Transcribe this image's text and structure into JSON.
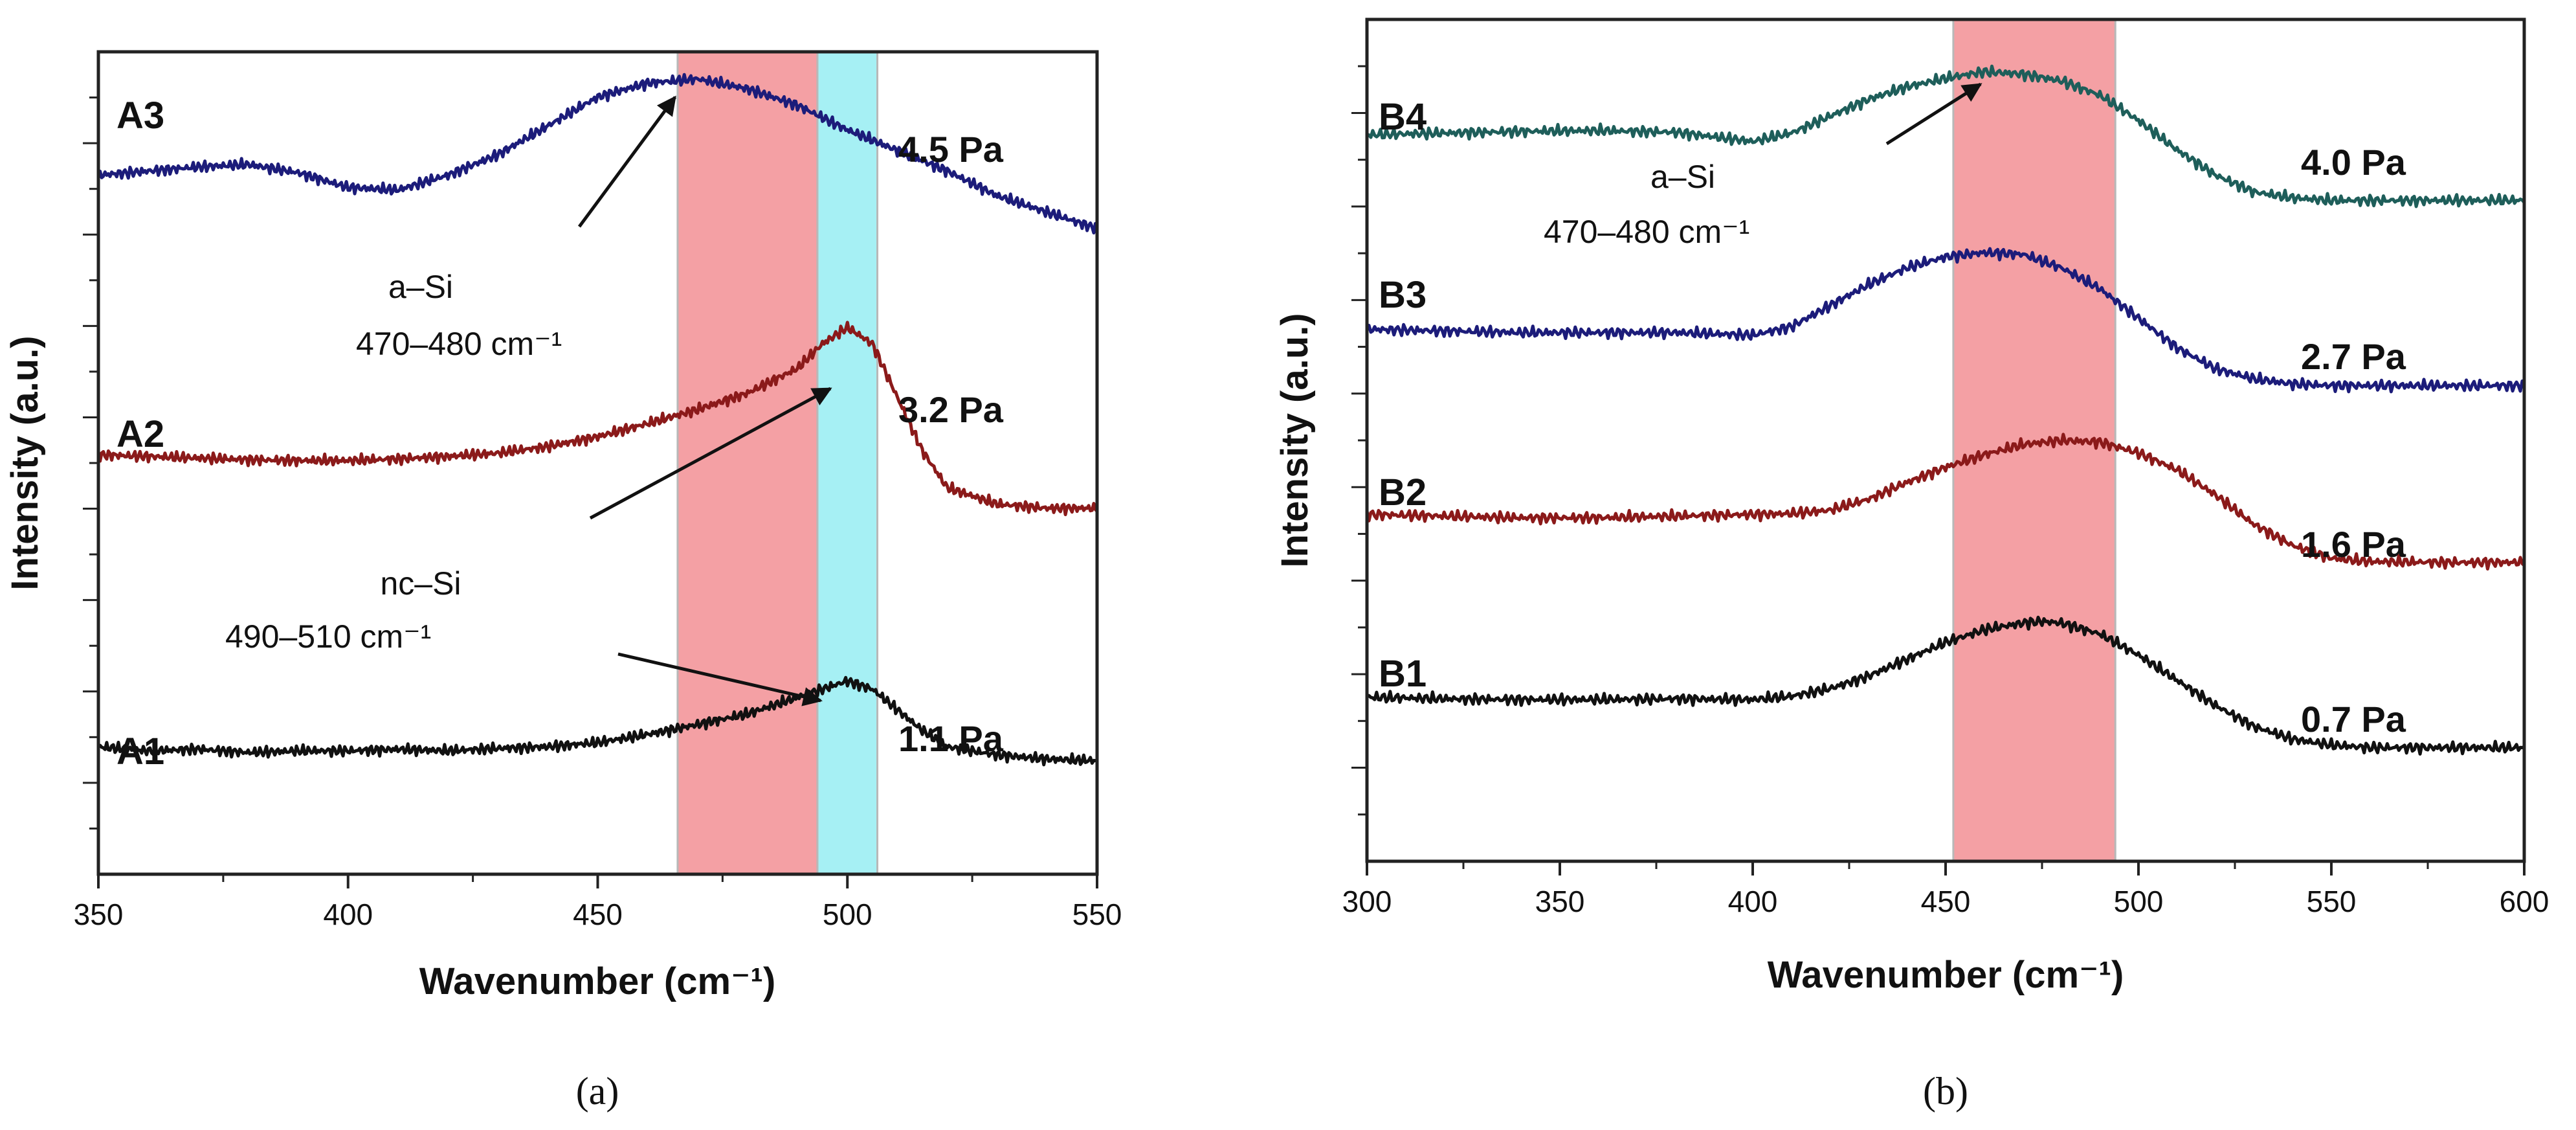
{
  "chart_data": [
    {
      "id": "a",
      "type": "line",
      "caption": "(a)",
      "xlabel": "Wavenumber (cm⁻¹)",
      "ylabel": "Intensity (a.u.)",
      "xlim": [
        350,
        550
      ],
      "ylim": [
        0,
        100
      ],
      "xticks": [
        350,
        400,
        450,
        500,
        550
      ],
      "bands": [
        {
          "name": "a-Si band",
          "x": [
            466,
            494
          ],
          "color": "#f4a0a4"
        },
        {
          "name": "nc-Si band",
          "x": [
            494,
            506
          ],
          "color": "#a6f0f4"
        }
      ],
      "series": [
        {
          "name": "A1",
          "pressure": "1.1 Pa",
          "color": "#111111",
          "x": [
            350,
            360,
            370,
            380,
            390,
            400,
            410,
            420,
            430,
            440,
            450,
            460,
            470,
            480,
            490,
            495,
            500,
            505,
            510,
            515,
            520,
            530,
            540,
            550
          ],
          "y": [
            15.5,
            15,
            15.2,
            14.8,
            15,
            15,
            15.2,
            15,
            15.3,
            15.5,
            16,
            17,
            18.2,
            19.5,
            21.5,
            22.5,
            23.5,
            22.5,
            20,
            17.5,
            15.5,
            14.5,
            14,
            13.8
          ]
        },
        {
          "name": "A2",
          "pressure": "3.2 Pa",
          "color": "#8b1a1a",
          "x": [
            350,
            360,
            370,
            380,
            390,
            400,
            410,
            420,
            430,
            440,
            450,
            460,
            470,
            480,
            490,
            495,
            500,
            505,
            510,
            515,
            520,
            530,
            540,
            550
          ],
          "y": [
            51,
            50.8,
            50.6,
            50.4,
            50.3,
            50.3,
            50.5,
            50.8,
            51.2,
            52,
            53.2,
            54.8,
            56.5,
            58.5,
            61.5,
            64.5,
            66.5,
            64.5,
            58,
            51.5,
            47,
            45,
            44.5,
            44.5
          ]
        },
        {
          "name": "A3",
          "pressure": "4.5 Pa",
          "color": "#1c1c7a",
          "x": [
            350,
            360,
            370,
            380,
            390,
            400,
            410,
            420,
            430,
            440,
            450,
            460,
            470,
            480,
            490,
            500,
            510,
            520,
            530,
            540,
            550
          ],
          "y": [
            85,
            85.5,
            86,
            86.3,
            85.3,
            83.5,
            83.2,
            85,
            87.5,
            91,
            94.5,
            96.2,
            96.7,
            95.5,
            93.5,
            90.5,
            88,
            85.5,
            82.5,
            80.5,
            78.5
          ]
        }
      ],
      "labels": {
        "samples": [
          "A1",
          "A2",
          "A3"
        ],
        "pressures": [
          "1.1 Pa",
          "3.2 Pa",
          "4.5 Pa"
        ]
      },
      "annotations": [
        {
          "lines": [
            "a–Si",
            "470–480 cm⁻¹"
          ]
        },
        {
          "lines": [
            "nc–Si",
            "490–510 cm⁻¹"
          ]
        }
      ]
    },
    {
      "id": "b",
      "type": "line",
      "caption": "(b)",
      "xlabel": "Wavenumber (cm⁻¹)",
      "ylabel": "Intensity (a.u.)",
      "xlim": [
        300,
        600
      ],
      "ylim": [
        0,
        100
      ],
      "xticks": [
        300,
        350,
        400,
        450,
        500,
        550,
        600
      ],
      "bands": [
        {
          "name": "a-Si band",
          "x": [
            452,
            494
          ],
          "color": "#f4a0a4"
        }
      ],
      "series": [
        {
          "name": "B1",
          "pressure": "0.7 Pa",
          "color": "#111111",
          "x": [
            300,
            320,
            340,
            360,
            380,
            400,
            410,
            420,
            430,
            440,
            450,
            460,
            470,
            475,
            480,
            490,
            500,
            510,
            520,
            530,
            540,
            550,
            560,
            580,
            600
          ],
          "y": [
            19.5,
            19.3,
            19.2,
            19.2,
            19.3,
            19.2,
            19.6,
            20.5,
            22,
            24,
            26,
            27.5,
            28.3,
            28.5,
            28.3,
            27,
            24.5,
            21.5,
            18.5,
            16,
            14.5,
            13.8,
            13.5,
            13.5,
            13.5
          ]
        },
        {
          "name": "B2",
          "pressure": "1.6 Pa",
          "color": "#8b1a1a",
          "x": [
            300,
            320,
            340,
            360,
            380,
            400,
            410,
            420,
            430,
            440,
            450,
            460,
            470,
            480,
            490,
            500,
            510,
            520,
            530,
            540,
            550,
            560,
            580,
            600
          ],
          "y": [
            41.2,
            41,
            40.8,
            40.8,
            41,
            41.2,
            41.3,
            41.7,
            43,
            45,
            46.8,
            48.3,
            49.5,
            50,
            49.8,
            48.5,
            46.5,
            43.5,
            40,
            37.5,
            36,
            35.6,
            35.5,
            35.5
          ]
        },
        {
          "name": "B3",
          "pressure": "2.7 Pa",
          "color": "#1c1c7a",
          "x": [
            300,
            320,
            340,
            360,
            380,
            400,
            410,
            420,
            430,
            440,
            450,
            460,
            470,
            480,
            490,
            500,
            510,
            520,
            530,
            540,
            550,
            560,
            580,
            600
          ],
          "y": [
            63.2,
            63,
            62.8,
            62.8,
            62.8,
            62.5,
            63.5,
            66,
            68.5,
            70.5,
            71.8,
            72.3,
            72.1,
            70.5,
            68,
            64.5,
            61,
            58.5,
            57.3,
            56.7,
            56.5,
            56.5,
            56.5,
            56.5
          ]
        },
        {
          "name": "B4",
          "pressure": "4.0 Pa",
          "color": "#1e5e5a",
          "x": [
            300,
            320,
            340,
            360,
            380,
            400,
            410,
            420,
            430,
            440,
            450,
            460,
            470,
            480,
            490,
            500,
            510,
            520,
            530,
            540,
            550,
            560,
            580,
            600
          ],
          "y": [
            86.3,
            86.5,
            86.7,
            86.8,
            86.6,
            85.5,
            86.5,
            88.5,
            90.5,
            92,
            93,
            93.8,
            93.5,
            92.7,
            91,
            88,
            84.5,
            81.5,
            79.5,
            78.8,
            78.5,
            78.5,
            78.5,
            78.5
          ]
        }
      ],
      "labels": {
        "samples": [
          "B1",
          "B2",
          "B3",
          "B4"
        ],
        "pressures": [
          "0.7 Pa",
          "1.6 Pa",
          "2.7 Pa",
          "4.0 Pa"
        ]
      },
      "annotations": [
        {
          "lines": [
            "a–Si",
            "470–480 cm⁻¹"
          ]
        }
      ]
    }
  ]
}
